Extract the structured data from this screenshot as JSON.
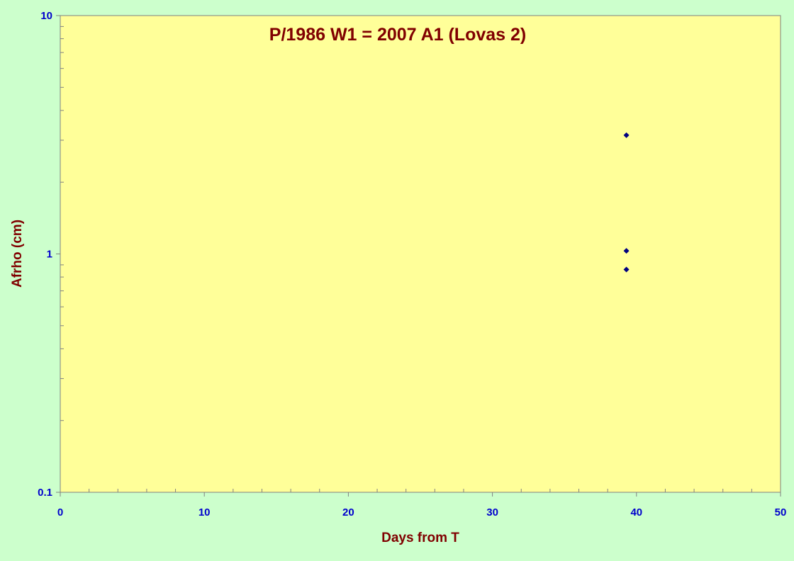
{
  "chart_data": {
    "type": "scatter",
    "title": "P/1986 W1 = 2007 A1 (Lovas 2)",
    "xlabel": "Days from T",
    "ylabel": "Afrho (cm)",
    "xlim": [
      0,
      50
    ],
    "ylim": [
      0.1,
      10
    ],
    "y_scale": "log",
    "x_ticks": [
      0,
      10,
      20,
      30,
      40,
      50
    ],
    "y_ticks": [
      0.1,
      1,
      10
    ],
    "y_tick_labels": [
      "0.1",
      "1",
      "10"
    ],
    "grid": false,
    "legend": "none",
    "series": [
      {
        "x": [
          39.3,
          39.3,
          39.3
        ],
        "y": [
          3.15,
          1.03,
          0.86
        ],
        "color": "#000080"
      }
    ],
    "colors": {
      "page_background": "#ccffcc",
      "plot_background": "#ffff99",
      "text": "#800000",
      "ticks": "#0000cc",
      "marker": "#000080"
    }
  }
}
